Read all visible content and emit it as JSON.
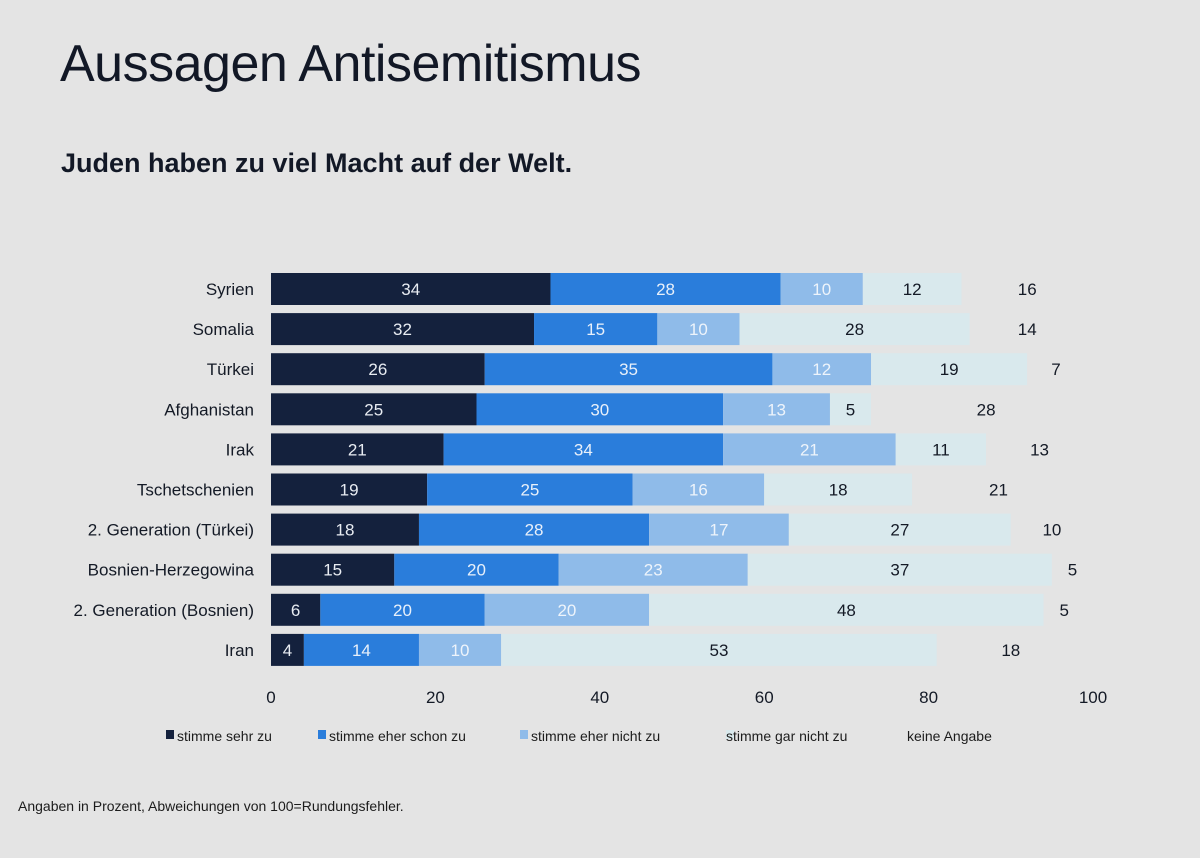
{
  "title": "Aussagen Antisemitismus",
  "subtitle": "Juden haben zu viel Macht auf der Welt.",
  "footnote": "Angaben in Prozent, Abweichungen von 100=Rundungsfehler.",
  "chart_data": {
    "type": "bar",
    "orientation": "horizontal",
    "stacked": true,
    "title": "Aussagen Antisemitismus",
    "subtitle": "Juden haben zu viel Macht auf der Welt.",
    "xlabel": "",
    "ylabel": "",
    "xlim": [
      0,
      100
    ],
    "xticks": [
      0,
      20,
      40,
      60,
      80,
      100
    ],
    "grid": false,
    "legend_position": "bottom",
    "categories": [
      "Syrien",
      "Somalia",
      "Türkei",
      "Afghanistan",
      "Irak",
      "Tschetschenien",
      "2. Generation (Türkei)",
      "Bosnien-Herzegowina",
      "2. Generation (Bosnien)",
      "Iran"
    ],
    "series": [
      {
        "name": "stimme sehr zu",
        "color": "#14213d",
        "label_color": "#e8ecf2",
        "values": [
          34,
          32,
          26,
          25,
          21,
          19,
          18,
          15,
          6,
          4
        ]
      },
      {
        "name": "stimme eher schon zu",
        "color": "#2a7ddb",
        "label_color": "#e8f0fa",
        "values": [
          28,
          15,
          35,
          30,
          34,
          25,
          28,
          20,
          20,
          14
        ]
      },
      {
        "name": "stimme eher nicht zu",
        "color": "#8fbbe9",
        "label_color": "#eef4fb",
        "values": [
          10,
          10,
          12,
          13,
          21,
          16,
          17,
          23,
          20,
          10
        ]
      },
      {
        "name": "stimme gar nicht zu",
        "color": "#d9e9ed",
        "label_color": "#141a26",
        "values": [
          12,
          28,
          19,
          5,
          11,
          18,
          27,
          37,
          48,
          53
        ]
      },
      {
        "name": "keine Angabe",
        "color": "#e4e4e4",
        "label_color": "#141a26",
        "values": [
          16,
          14,
          7,
          28,
          13,
          21,
          10,
          5,
          5,
          18
        ]
      }
    ],
    "footnote": "Angaben in Prozent, Abweichungen von 100=Rundungsfehler."
  }
}
